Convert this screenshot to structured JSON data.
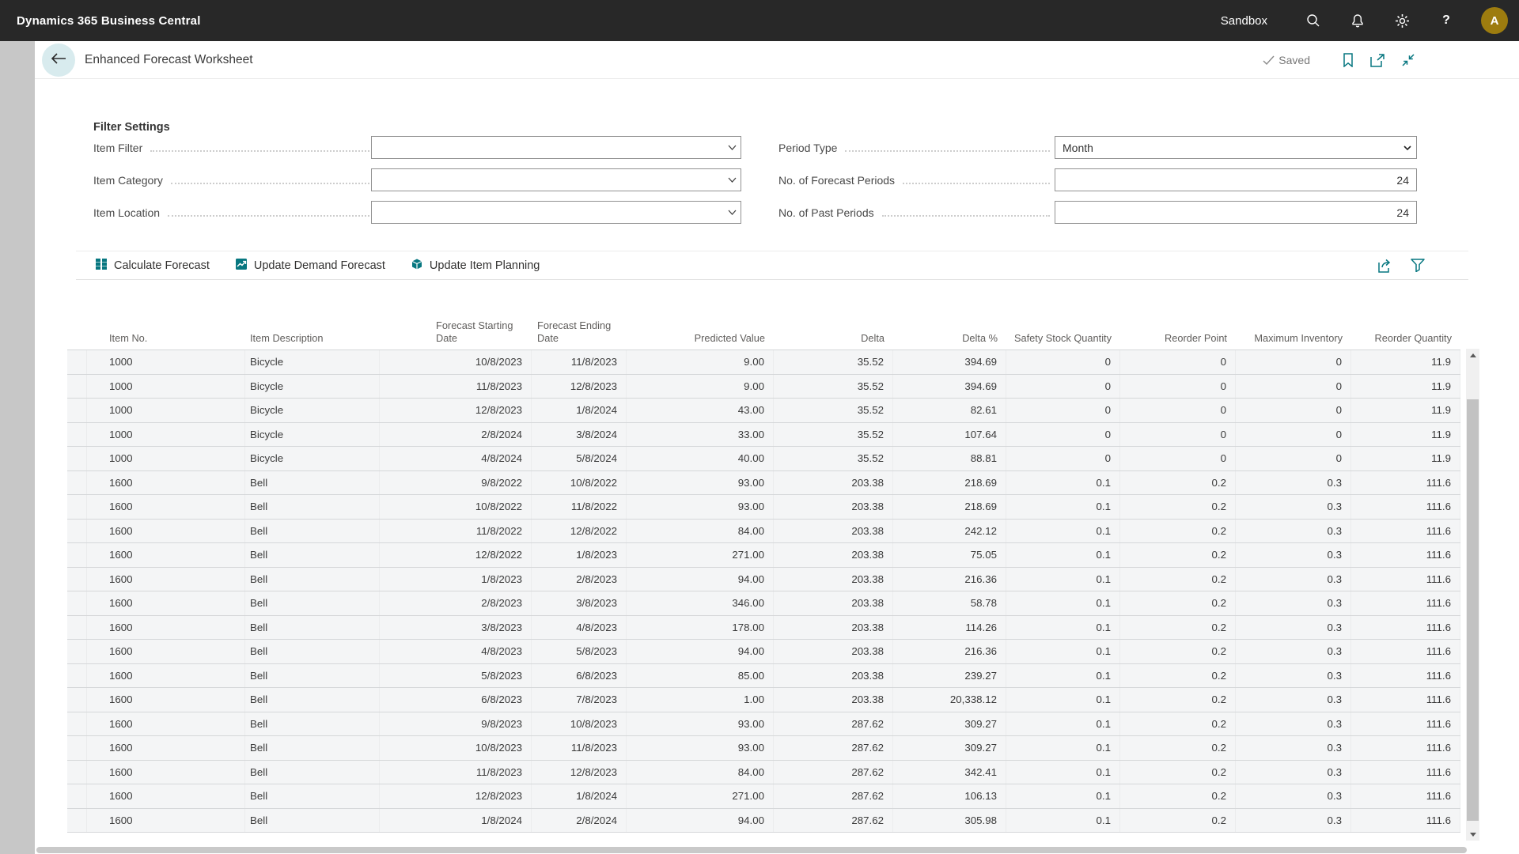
{
  "topbar": {
    "app_title": "Dynamics 365 Business Central",
    "environment": "Sandbox",
    "avatar_initial": "A"
  },
  "page": {
    "title": "Enhanced Forecast Worksheet",
    "saved_label": "Saved"
  },
  "filters": {
    "section_title": "Filter Settings",
    "item_filter_label": "Item Filter",
    "item_filter_value": "",
    "item_category_label": "Item Category",
    "item_category_value": "",
    "item_location_label": "Item Location",
    "item_location_value": "",
    "period_type_label": "Period Type",
    "period_type_value": "Month",
    "forecast_periods_label": "No. of Forecast Periods",
    "forecast_periods_value": "24",
    "past_periods_label": "No. of Past Periods",
    "past_periods_value": "24"
  },
  "actions": {
    "calculate_forecast": "Calculate Forecast",
    "update_demand_forecast": "Update Demand Forecast",
    "update_item_planning": "Update Item Planning"
  },
  "table": {
    "columns": [
      "Item No.",
      "Item Description",
      "Forecast Starting Date",
      "Forecast Ending Date",
      "Predicted Value",
      "Delta",
      "Delta %",
      "Safety Stock Quantity",
      "Reorder Point",
      "Maximum Inventory",
      "Reorder Quantity"
    ],
    "rows": [
      [
        "1000",
        "Bicycle",
        "10/8/2023",
        "11/8/2023",
        "9.00",
        "35.52",
        "394.69",
        "0",
        "0",
        "0",
        "11.9"
      ],
      [
        "1000",
        "Bicycle",
        "11/8/2023",
        "12/8/2023",
        "9.00",
        "35.52",
        "394.69",
        "0",
        "0",
        "0",
        "11.9"
      ],
      [
        "1000",
        "Bicycle",
        "12/8/2023",
        "1/8/2024",
        "43.00",
        "35.52",
        "82.61",
        "0",
        "0",
        "0",
        "11.9"
      ],
      [
        "1000",
        "Bicycle",
        "2/8/2024",
        "3/8/2024",
        "33.00",
        "35.52",
        "107.64",
        "0",
        "0",
        "0",
        "11.9"
      ],
      [
        "1000",
        "Bicycle",
        "4/8/2024",
        "5/8/2024",
        "40.00",
        "35.52",
        "88.81",
        "0",
        "0",
        "0",
        "11.9"
      ],
      [
        "1600",
        "Bell",
        "9/8/2022",
        "10/8/2022",
        "93.00",
        "203.38",
        "218.69",
        "0.1",
        "0.2",
        "0.3",
        "111.6"
      ],
      [
        "1600",
        "Bell",
        "10/8/2022",
        "11/8/2022",
        "93.00",
        "203.38",
        "218.69",
        "0.1",
        "0.2",
        "0.3",
        "111.6"
      ],
      [
        "1600",
        "Bell",
        "11/8/2022",
        "12/8/2022",
        "84.00",
        "203.38",
        "242.12",
        "0.1",
        "0.2",
        "0.3",
        "111.6"
      ],
      [
        "1600",
        "Bell",
        "12/8/2022",
        "1/8/2023",
        "271.00",
        "203.38",
        "75.05",
        "0.1",
        "0.2",
        "0.3",
        "111.6"
      ],
      [
        "1600",
        "Bell",
        "1/8/2023",
        "2/8/2023",
        "94.00",
        "203.38",
        "216.36",
        "0.1",
        "0.2",
        "0.3",
        "111.6"
      ],
      [
        "1600",
        "Bell",
        "2/8/2023",
        "3/8/2023",
        "346.00",
        "203.38",
        "58.78",
        "0.1",
        "0.2",
        "0.3",
        "111.6"
      ],
      [
        "1600",
        "Bell",
        "3/8/2023",
        "4/8/2023",
        "178.00",
        "203.38",
        "114.26",
        "0.1",
        "0.2",
        "0.3",
        "111.6"
      ],
      [
        "1600",
        "Bell",
        "4/8/2023",
        "5/8/2023",
        "94.00",
        "203.38",
        "216.36",
        "0.1",
        "0.2",
        "0.3",
        "111.6"
      ],
      [
        "1600",
        "Bell",
        "5/8/2023",
        "6/8/2023",
        "85.00",
        "203.38",
        "239.27",
        "0.1",
        "0.2",
        "0.3",
        "111.6"
      ],
      [
        "1600",
        "Bell",
        "6/8/2023",
        "7/8/2023",
        "1.00",
        "203.38",
        "20,338.12",
        "0.1",
        "0.2",
        "0.3",
        "111.6"
      ],
      [
        "1600",
        "Bell",
        "9/8/2023",
        "10/8/2023",
        "93.00",
        "287.62",
        "309.27",
        "0.1",
        "0.2",
        "0.3",
        "111.6"
      ],
      [
        "1600",
        "Bell",
        "10/8/2023",
        "11/8/2023",
        "93.00",
        "287.62",
        "309.27",
        "0.1",
        "0.2",
        "0.3",
        "111.6"
      ],
      [
        "1600",
        "Bell",
        "11/8/2023",
        "12/8/2023",
        "84.00",
        "287.62",
        "342.41",
        "0.1",
        "0.2",
        "0.3",
        "111.6"
      ],
      [
        "1600",
        "Bell",
        "12/8/2023",
        "1/8/2024",
        "271.00",
        "287.62",
        "106.13",
        "0.1",
        "0.2",
        "0.3",
        "111.6"
      ],
      [
        "1600",
        "Bell",
        "1/8/2024",
        "2/8/2024",
        "94.00",
        "287.62",
        "305.98",
        "0.1",
        "0.2",
        "0.3",
        "111.6"
      ]
    ]
  },
  "colors": {
    "accent_teal": "#077780",
    "topbar_bg": "#282828",
    "avatar_gold": "#9d7c0f",
    "row_bg": "#f4f5f6"
  }
}
